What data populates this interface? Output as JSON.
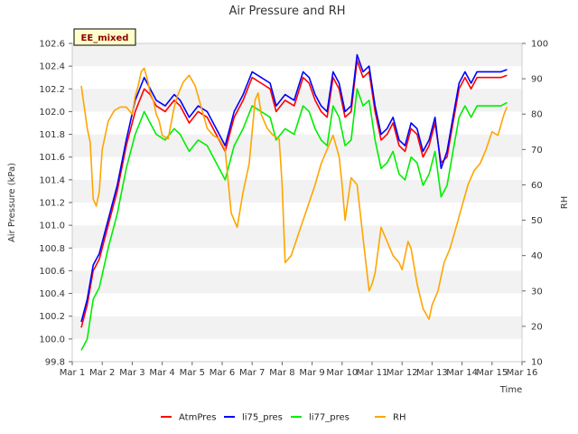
{
  "chart_data": {
    "type": "line",
    "title": "Air Pressure and RH",
    "site_label": "EE_mixed",
    "xlabel": "Time",
    "ylabel": "Air Pressure (kPa)",
    "y2label": "RH",
    "x_ticks": [
      "Mar 1",
      "Mar 2",
      "Mar 3",
      "Mar 4",
      "Mar 5",
      "Mar 6",
      "Mar 7",
      "Mar 8",
      "Mar 9",
      "Mar 10",
      "Mar 11",
      "Mar 12",
      "Mar 13",
      "Mar 14",
      "Mar 15",
      "Mar 16"
    ],
    "y_ticks": [
      "99.8",
      "100.0",
      "100.2",
      "100.4",
      "100.6",
      "100.8",
      "101.0",
      "101.2",
      "101.4",
      "101.6",
      "101.8",
      "102.0",
      "102.2",
      "102.4",
      "102.6"
    ],
    "y2_ticks": [
      "10",
      "20",
      "30",
      "40",
      "50",
      "60",
      "70",
      "80",
      "90",
      "100"
    ],
    "xlim": [
      0,
      15
    ],
    "ylim": [
      99.8,
      102.6
    ],
    "y2lim": [
      10,
      100
    ],
    "grid": "horizontal bands",
    "legend_position": "bottom",
    "series": [
      {
        "name": "AtmPres",
        "axis": "left",
        "color": "#ff0000",
        "x": [
          0.3,
          0.5,
          0.7,
          0.9,
          1.2,
          1.5,
          1.8,
          2.1,
          2.4,
          2.6,
          2.8,
          3.1,
          3.4,
          3.6,
          3.9,
          4.2,
          4.5,
          4.8,
          5.1,
          5.4,
          5.7,
          6.0,
          6.3,
          6.6,
          6.8,
          7.1,
          7.4,
          7.7,
          7.9,
          8.1,
          8.3,
          8.5,
          8.7,
          8.9,
          9.1,
          9.3,
          9.5,
          9.7,
          9.9,
          10.1,
          10.3,
          10.5,
          10.7,
          10.9,
          11.1,
          11.3,
          11.5,
          11.7,
          11.9,
          12.1,
          12.3,
          12.5,
          12.7,
          12.9,
          13.1,
          13.3,
          13.5,
          13.7,
          13.9,
          14.1,
          14.3,
          14.5
        ],
        "y": [
          100.1,
          100.3,
          100.6,
          100.7,
          101.0,
          101.3,
          101.7,
          102.0,
          102.2,
          102.15,
          102.05,
          102.0,
          102.1,
          102.05,
          101.9,
          102.0,
          101.95,
          101.8,
          101.65,
          101.95,
          102.1,
          102.3,
          102.25,
          102.2,
          102.0,
          102.1,
          102.05,
          102.3,
          102.25,
          102.1,
          102.0,
          101.95,
          102.3,
          102.2,
          101.95,
          102.0,
          102.45,
          102.3,
          102.35,
          102.0,
          101.75,
          101.8,
          101.9,
          101.7,
          101.65,
          101.85,
          101.8,
          101.6,
          101.7,
          101.9,
          101.55,
          101.6,
          101.9,
          102.2,
          102.3,
          102.2,
          102.3,
          102.3,
          102.3,
          102.3,
          102.3,
          102.32
        ]
      },
      {
        "name": "li75_pres",
        "axis": "left",
        "color": "#0000ff",
        "x": [
          0.3,
          0.5,
          0.7,
          0.9,
          1.2,
          1.5,
          1.8,
          2.1,
          2.4,
          2.6,
          2.8,
          3.1,
          3.4,
          3.6,
          3.9,
          4.2,
          4.5,
          4.8,
          5.1,
          5.4,
          5.7,
          6.0,
          6.3,
          6.6,
          6.8,
          7.1,
          7.4,
          7.7,
          7.9,
          8.1,
          8.3,
          8.5,
          8.7,
          8.9,
          9.1,
          9.3,
          9.5,
          9.7,
          9.9,
          10.1,
          10.3,
          10.5,
          10.7,
          10.9,
          11.1,
          11.3,
          11.5,
          11.7,
          11.9,
          12.1,
          12.3,
          12.5,
          12.7,
          12.9,
          13.1,
          13.3,
          13.5,
          13.7,
          13.9,
          14.1,
          14.3,
          14.5
        ],
        "y": [
          100.15,
          100.35,
          100.65,
          100.75,
          101.05,
          101.35,
          101.75,
          102.1,
          102.3,
          102.2,
          102.1,
          102.05,
          102.15,
          102.1,
          101.95,
          102.05,
          102.0,
          101.85,
          101.7,
          102.0,
          102.15,
          102.35,
          102.3,
          102.25,
          102.05,
          102.15,
          102.1,
          102.35,
          102.3,
          102.15,
          102.05,
          102.0,
          102.35,
          102.25,
          102.0,
          102.05,
          102.5,
          102.35,
          102.4,
          102.05,
          101.8,
          101.85,
          101.95,
          101.75,
          101.7,
          101.9,
          101.85,
          101.65,
          101.75,
          101.95,
          101.5,
          101.65,
          101.95,
          102.25,
          102.35,
          102.25,
          102.35,
          102.35,
          102.35,
          102.35,
          102.35,
          102.37
        ]
      },
      {
        "name": "li77_pres",
        "axis": "left",
        "color": "#00ee00",
        "x": [
          0.3,
          0.5,
          0.7,
          0.9,
          1.2,
          1.5,
          1.8,
          2.1,
          2.4,
          2.6,
          2.8,
          3.1,
          3.4,
          3.6,
          3.9,
          4.2,
          4.5,
          4.8,
          5.1,
          5.4,
          5.7,
          6.0,
          6.3,
          6.6,
          6.8,
          7.1,
          7.4,
          7.7,
          7.9,
          8.1,
          8.3,
          8.5,
          8.7,
          8.9,
          9.1,
          9.3,
          9.5,
          9.7,
          9.9,
          10.1,
          10.3,
          10.5,
          10.7,
          10.9,
          11.1,
          11.3,
          11.5,
          11.7,
          11.9,
          12.1,
          12.3,
          12.5,
          12.7,
          12.9,
          13.1,
          13.3,
          13.5,
          13.7,
          13.9,
          14.1,
          14.3,
          14.5
        ],
        "y": [
          99.9,
          100.0,
          100.35,
          100.45,
          100.8,
          101.1,
          101.5,
          101.8,
          102.0,
          101.9,
          101.8,
          101.75,
          101.85,
          101.8,
          101.65,
          101.75,
          101.7,
          101.55,
          101.4,
          101.7,
          101.85,
          102.05,
          102.0,
          101.95,
          101.75,
          101.85,
          101.8,
          102.05,
          102.0,
          101.85,
          101.75,
          101.7,
          102.05,
          101.95,
          101.7,
          101.75,
          102.2,
          102.05,
          102.1,
          101.75,
          101.5,
          101.55,
          101.65,
          101.45,
          101.4,
          101.6,
          101.55,
          101.35,
          101.45,
          101.65,
          101.25,
          101.35,
          101.65,
          101.95,
          102.05,
          101.95,
          102.05,
          102.05,
          102.05,
          102.05,
          102.05,
          102.08
        ]
      },
      {
        "name": "RH",
        "axis": "right",
        "color": "#ffa500",
        "x": [
          0.3,
          0.4,
          0.5,
          0.6,
          0.7,
          0.8,
          0.9,
          1.0,
          1.2,
          1.4,
          1.6,
          1.8,
          2.0,
          2.1,
          2.2,
          2.3,
          2.4,
          2.5,
          2.6,
          2.7,
          2.8,
          2.9,
          3.0,
          3.2,
          3.4,
          3.5,
          3.7,
          3.9,
          4.1,
          4.3,
          4.5,
          4.7,
          4.9,
          5.1,
          5.3,
          5.5,
          5.7,
          5.9,
          6.1,
          6.2,
          6.3,
          6.5,
          6.7,
          6.9,
          7.0,
          7.1,
          7.3,
          7.5,
          7.7,
          7.9,
          8.1,
          8.3,
          8.5,
          8.7,
          8.9,
          9.0,
          9.1,
          9.2,
          9.3,
          9.5,
          9.7,
          9.9,
          10.0,
          10.1,
          10.3,
          10.5,
          10.7,
          10.9,
          11.0,
          11.1,
          11.2,
          11.3,
          11.5,
          11.7,
          11.9,
          12.0,
          12.2,
          12.4,
          12.6,
          12.8,
          13.0,
          13.2,
          13.4,
          13.6,
          13.8,
          14.0,
          14.2,
          14.4,
          14.5
        ],
        "y": [
          88,
          82,
          76,
          72,
          56,
          54,
          58,
          70,
          78,
          81,
          82,
          82,
          80,
          85,
          88,
          92,
          93,
          90,
          86,
          84,
          80,
          78,
          74,
          73,
          82,
          85,
          89,
          91,
          88,
          82,
          76,
          74,
          73,
          70,
          52,
          48,
          58,
          66,
          84,
          86,
          80,
          76,
          74,
          73,
          60,
          38,
          40,
          45,
          50,
          55,
          60,
          66,
          70,
          74,
          68,
          60,
          50,
          56,
          62,
          60,
          45,
          30,
          32,
          35,
          48,
          44,
          40,
          38,
          36,
          40,
          44,
          42,
          32,
          25,
          22,
          26,
          30,
          38,
          42,
          48,
          54,
          60,
          64,
          66,
          70,
          75,
          74,
          80,
          82
        ]
      }
    ]
  }
}
